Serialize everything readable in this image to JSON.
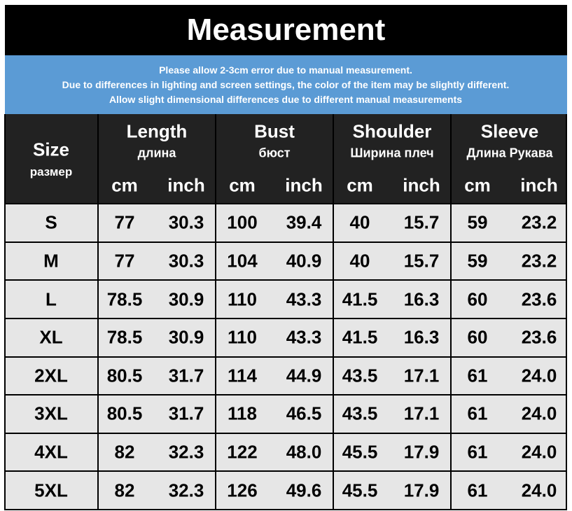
{
  "title": "Measurement",
  "notice": [
    "Please allow 2-3cm error due to manual measurement.",
    "Due to differences in lighting and screen settings, the color of the item may be slightly different.",
    "Allow slight dimensional differences due to different manual measurements"
  ],
  "header": {
    "size": {
      "label": "Size",
      "sub": "размер"
    },
    "groups": [
      {
        "name": "Length",
        "sub": "длина",
        "units": [
          "cm",
          "inch"
        ]
      },
      {
        "name": "Bust",
        "sub": "бюст",
        "units": [
          "cm",
          "inch"
        ]
      },
      {
        "name": "Shoulder",
        "sub": "Ширина плеч",
        "units": [
          "cm",
          "inch"
        ]
      },
      {
        "name": "Sleeve",
        "sub": "Длина Рукава",
        "units": [
          "cm",
          "inch"
        ]
      }
    ]
  },
  "table": {
    "rows": [
      [
        "S",
        "77",
        "30.3",
        "100",
        "39.4",
        "40",
        "15.7",
        "59",
        "23.2"
      ],
      [
        "M",
        "77",
        "30.3",
        "104",
        "40.9",
        "40",
        "15.7",
        "59",
        "23.2"
      ],
      [
        "L",
        "78.5",
        "30.9",
        "110",
        "43.3",
        "41.5",
        "16.3",
        "60",
        "23.6"
      ],
      [
        "XL",
        "78.5",
        "30.9",
        "110",
        "43.3",
        "41.5",
        "16.3",
        "60",
        "23.6"
      ],
      [
        "2XL",
        "80.5",
        "31.7",
        "114",
        "44.9",
        "43.5",
        "17.1",
        "61",
        "24.0"
      ],
      [
        "3XL",
        "80.5",
        "31.7",
        "118",
        "46.5",
        "43.5",
        "17.1",
        "61",
        "24.0"
      ],
      [
        "4XL",
        "82",
        "32.3",
        "122",
        "48.0",
        "45.5",
        "17.9",
        "61",
        "24.0"
      ],
      [
        "5XL",
        "82",
        "32.3",
        "126",
        "49.6",
        "45.5",
        "17.9",
        "61",
        "24.0"
      ]
    ]
  }
}
